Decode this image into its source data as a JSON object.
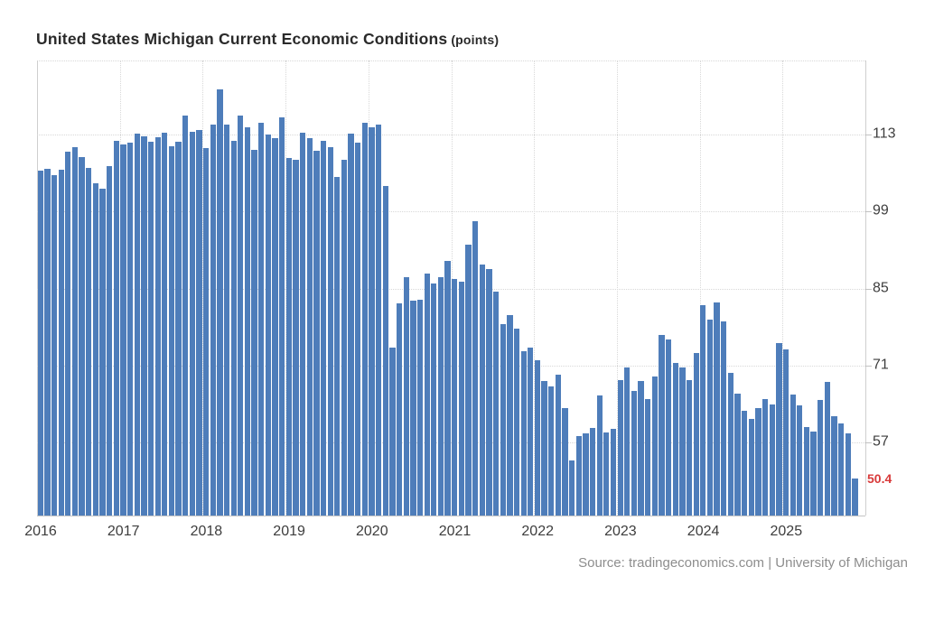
{
  "chart_data": {
    "type": "bar",
    "title": "United States Michigan Current Economic Conditions",
    "unit_label": "(points)",
    "unit": "points",
    "source": "Source: tradingeconomics.com | University of Michigan",
    "x_axis_labels": [
      "2016",
      "2017",
      "2018",
      "2019",
      "2020",
      "2021",
      "2022",
      "2023",
      "2024",
      "2025"
    ],
    "y_axis_ticks": [
      113,
      99,
      85,
      71,
      57
    ],
    "ylim": [
      43.7,
      126.5
    ],
    "grid": true,
    "legend": "none",
    "latest": {
      "value": 50.4,
      "label": "50.4"
    },
    "series": [
      {
        "year": "2016",
        "values": [
          106.4,
          106.8,
          105.6,
          106.7,
          109.9,
          110.8,
          109.0,
          107.0,
          104.2,
          103.2,
          107.3,
          111.9
        ]
      },
      {
        "year": "2017",
        "values": [
          111.3,
          111.5,
          113.2,
          112.7,
          111.7,
          112.5,
          113.4,
          110.9,
          111.7,
          116.5,
          113.5,
          113.8
        ]
      },
      {
        "year": "2018",
        "values": [
          110.5,
          114.9,
          121.2,
          114.9,
          111.8,
          116.5,
          114.4,
          110.3,
          115.2,
          113.1,
          112.3,
          116.1
        ]
      },
      {
        "year": "2019",
        "values": [
          108.8,
          108.5,
          113.3,
          112.3,
          110.0,
          111.9,
          110.7,
          105.3,
          108.5,
          113.2,
          111.6,
          115.2
        ]
      },
      {
        "year": "2020",
        "values": [
          114.4,
          114.8,
          103.7,
          74.3,
          82.3,
          87.1,
          82.8,
          82.9,
          87.8,
          85.9,
          87.0,
          90.0
        ]
      },
      {
        "year": "2021",
        "values": [
          86.7,
          86.2,
          93.0,
          97.2,
          89.4,
          88.6,
          84.5,
          78.5,
          80.1,
          77.7,
          73.6,
          74.2
        ]
      },
      {
        "year": "2022",
        "values": [
          72.0,
          68.2,
          67.2,
          69.4,
          63.3,
          53.8,
          58.1,
          58.6,
          59.7,
          65.6,
          58.8,
          59.4
        ]
      },
      {
        "year": "2023",
        "values": [
          68.4,
          70.7,
          66.3,
          68.2,
          64.9,
          69.0,
          76.6,
          75.7,
          71.4,
          70.6,
          68.3,
          73.3
        ]
      },
      {
        "year": "2024",
        "values": [
          81.9,
          79.4,
          82.5,
          79.0,
          69.6,
          65.9,
          62.7,
          61.3,
          63.3,
          64.9,
          63.9,
          75.1
        ]
      },
      {
        "year": "2025",
        "values": [
          74.0,
          65.7,
          63.8,
          59.8,
          58.9,
          64.8,
          68.0,
          61.7,
          60.4,
          58.6,
          50.4
        ]
      }
    ],
    "colors": {
      "bar": "#4e7dba",
      "latest_label": "#d83a3a",
      "grid": "#d8d8d8",
      "axis_text": "#3d3d3d",
      "title_text": "#2a2a2a",
      "source_text": "#8d8d8d",
      "background": "#ffffff"
    }
  }
}
